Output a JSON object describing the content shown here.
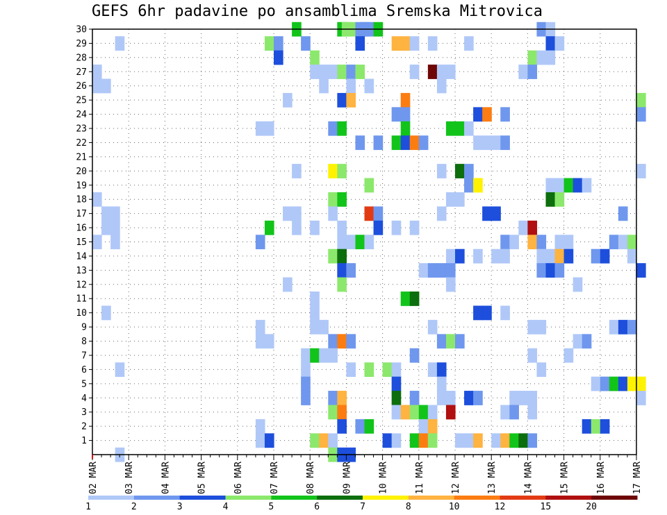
{
  "chart_data": {
    "type": "heatmap",
    "title": "GEFS 6hr padavine po ansamblima Sremska Mitrovica",
    "ylabel": "",
    "xlabel": "",
    "y_ticks": [
      "1",
      "2",
      "3",
      "4",
      "5",
      "6",
      "7",
      "8",
      "9",
      "10",
      "11",
      "12",
      "13",
      "14",
      "15",
      "16",
      "17",
      "18",
      "19",
      "20",
      "21",
      "22",
      "23",
      "24",
      "25",
      "26",
      "27",
      "28",
      "29",
      "30"
    ],
    "x_ticks": [
      "02 MAR",
      "03 MAR",
      "04 MAR",
      "05 MAR",
      "06 MAR",
      "07 MAR",
      "08 MAR",
      "09 MAR",
      "10 MAR",
      "11 MAR",
      "12 MAR",
      "13 MAR",
      "14 MAR",
      "15 MAR",
      "16 MAR",
      "17 MAR"
    ],
    "x_range": [
      "02 MAR 00Z",
      "17 MAR 00Z"
    ],
    "steps_per_day": 4,
    "y_range": [
      0,
      30
    ],
    "grid": true,
    "colorbar": {
      "labels": [
        "1",
        "2",
        "3",
        "4",
        "5",
        "6",
        "7",
        "8",
        "10",
        "12",
        "15",
        "20"
      ],
      "colors": [
        "#b0c8f8",
        "#6f97ee",
        "#1d4fdc",
        "#8ce86c",
        "#12c41a",
        "#0c6e0c",
        "#fff200",
        "#ffb340",
        "#fb7d12",
        "#e23b14",
        "#b01010",
        "#6e0606"
      ]
    },
    "cells": [
      [
        30,
        22.0,
        5
      ],
      [
        30,
        27.0,
        5
      ],
      [
        30,
        27.5,
        4
      ],
      [
        30,
        28.0,
        4
      ],
      [
        30,
        29.0,
        2
      ],
      [
        30,
        29.5,
        2
      ],
      [
        30,
        30.0,
        2
      ],
      [
        30,
        31.0,
        5
      ],
      [
        30,
        49.0,
        2
      ],
      [
        30,
        50.0,
        1
      ],
      [
        29,
        2.5,
        1
      ],
      [
        29,
        19.0,
        4
      ],
      [
        29,
        20.0,
        2
      ],
      [
        29,
        23.0,
        2
      ],
      [
        29,
        29.0,
        3
      ],
      [
        29,
        33.0,
        8
      ],
      [
        29,
        34.0,
        8
      ],
      [
        29,
        35.0,
        1
      ],
      [
        29,
        37.0,
        1
      ],
      [
        29,
        41.0,
        1
      ],
      [
        29,
        50.0,
        3
      ],
      [
        29,
        51.0,
        1
      ],
      [
        28,
        20.0,
        3
      ],
      [
        28,
        24.0,
        4
      ],
      [
        28,
        50.0,
        1
      ],
      [
        28,
        48.0,
        4
      ],
      [
        28,
        49.0,
        1
      ],
      [
        27,
        0.0,
        1
      ],
      [
        27,
        24.0,
        1
      ],
      [
        27,
        25.0,
        1
      ],
      [
        27,
        26.0,
        1
      ],
      [
        27,
        27.0,
        4
      ],
      [
        27,
        28.0,
        2
      ],
      [
        27,
        29.0,
        4
      ],
      [
        27,
        35.0,
        1
      ],
      [
        27,
        37.0,
        12
      ],
      [
        27,
        38.0,
        1
      ],
      [
        27,
        39.0,
        1
      ],
      [
        27,
        47.0,
        1
      ],
      [
        27,
        48.0,
        2
      ],
      [
        26,
        0.0,
        1
      ],
      [
        26,
        1.0,
        1
      ],
      [
        26,
        25.0,
        1
      ],
      [
        26,
        28.0,
        1
      ],
      [
        26,
        30.0,
        1
      ],
      [
        26,
        38.0,
        1
      ],
      [
        25,
        21.0,
        1
      ],
      [
        25,
        27.0,
        3
      ],
      [
        25,
        28.0,
        8
      ],
      [
        25,
        34.0,
        9
      ],
      [
        25,
        60.0,
        4
      ],
      [
        24,
        33.0,
        2
      ],
      [
        24,
        34.0,
        2
      ],
      [
        24,
        42.0,
        3
      ],
      [
        24,
        43.0,
        9
      ],
      [
        24,
        45.0,
        2
      ],
      [
        24,
        60.0,
        2
      ],
      [
        23,
        18.0,
        1
      ],
      [
        23,
        19.0,
        1
      ],
      [
        23,
        26.0,
        2
      ],
      [
        23,
        27.0,
        5
      ],
      [
        23,
        34.0,
        5
      ],
      [
        23,
        39.0,
        5
      ],
      [
        23,
        40.0,
        5
      ],
      [
        23,
        41.0,
        1
      ],
      [
        22,
        29.0,
        2
      ],
      [
        22,
        31.0,
        2
      ],
      [
        22,
        33.0,
        5
      ],
      [
        22,
        34.0,
        3
      ],
      [
        22,
        35.0,
        9
      ],
      [
        22,
        36.0,
        2
      ],
      [
        22,
        42.0,
        1
      ],
      [
        22,
        43.0,
        1
      ],
      [
        22,
        44.0,
        1
      ],
      [
        22,
        45.0,
        2
      ],
      [
        20,
        22.0,
        1
      ],
      [
        20,
        26.0,
        7
      ],
      [
        20,
        27.0,
        4
      ],
      [
        20,
        38.0,
        1
      ],
      [
        20,
        40.0,
        6
      ],
      [
        20,
        41.0,
        2
      ],
      [
        20,
        60.0,
        1
      ],
      [
        19,
        30.0,
        4
      ],
      [
        19,
        41.0,
        2
      ],
      [
        19,
        42.0,
        7
      ],
      [
        19,
        50.0,
        1
      ],
      [
        19,
        51.0,
        1
      ],
      [
        19,
        52.0,
        5
      ],
      [
        19,
        53.0,
        3
      ],
      [
        19,
        54.0,
        1
      ],
      [
        18,
        0.0,
        1
      ],
      [
        18,
        26.0,
        4
      ],
      [
        18,
        27.0,
        5
      ],
      [
        18,
        39.0,
        1
      ],
      [
        18,
        40.0,
        1
      ],
      [
        18,
        50.0,
        6
      ],
      [
        18,
        51.0,
        4
      ],
      [
        17,
        1.0,
        1
      ],
      [
        17,
        2.0,
        1
      ],
      [
        17,
        21.0,
        1
      ],
      [
        17,
        22.0,
        1
      ],
      [
        17,
        26.0,
        1
      ],
      [
        17,
        30.0,
        10
      ],
      [
        17,
        31.0,
        2
      ],
      [
        17,
        38.0,
        1
      ],
      [
        17,
        43.0,
        3
      ],
      [
        17,
        44.0,
        3
      ],
      [
        17,
        58.0,
        2
      ],
      [
        16,
        1.0,
        1
      ],
      [
        16,
        2.0,
        1
      ],
      [
        16,
        19.0,
        5
      ],
      [
        16,
        22.0,
        1
      ],
      [
        16,
        24.0,
        1
      ],
      [
        16,
        27.0,
        1
      ],
      [
        16,
        31.0,
        3
      ],
      [
        16,
        33.0,
        1
      ],
      [
        16,
        35.0,
        1
      ],
      [
        16,
        47.0,
        1
      ],
      [
        16,
        48.0,
        11
      ],
      [
        15,
        0.0,
        1
      ],
      [
        15,
        2.0,
        1
      ],
      [
        15,
        18.0,
        2
      ],
      [
        15,
        27.0,
        1
      ],
      [
        15,
        28.0,
        1
      ],
      [
        15,
        29.0,
        5
      ],
      [
        15,
        30.0,
        1
      ],
      [
        15,
        45.0,
        2
      ],
      [
        15,
        46.0,
        1
      ],
      [
        15,
        48.0,
        8
      ],
      [
        15,
        49.0,
        2
      ],
      [
        15,
        51.0,
        1
      ],
      [
        15,
        52.0,
        1
      ],
      [
        15,
        57.0,
        2
      ],
      [
        15,
        58.0,
        1
      ],
      [
        15,
        59.0,
        4
      ],
      [
        14,
        26.0,
        4
      ],
      [
        14,
        27.0,
        6
      ],
      [
        14,
        39.0,
        1
      ],
      [
        14,
        40.0,
        3
      ],
      [
        14,
        42.0,
        1
      ],
      [
        14,
        44.0,
        1
      ],
      [
        14,
        45.0,
        1
      ],
      [
        14,
        49.0,
        1
      ],
      [
        14,
        50.0,
        1
      ],
      [
        14,
        51.0,
        8
      ],
      [
        14,
        52.0,
        3
      ],
      [
        14,
        55.0,
        2
      ],
      [
        14,
        56.0,
        3
      ],
      [
        14,
        59.0,
        1
      ],
      [
        13,
        27.0,
        3
      ],
      [
        13,
        28.0,
        2
      ],
      [
        13,
        36.0,
        1
      ],
      [
        13,
        37.0,
        2
      ],
      [
        13,
        38.0,
        2
      ],
      [
        13,
        39.0,
        2
      ],
      [
        13,
        49.0,
        2
      ],
      [
        13,
        50.0,
        3
      ],
      [
        13,
        51.0,
        2
      ],
      [
        13,
        60.0,
        3
      ],
      [
        12,
        21.0,
        1
      ],
      [
        12,
        27.0,
        4
      ],
      [
        12,
        39.0,
        1
      ],
      [
        12,
        53.0,
        1
      ],
      [
        11,
        24.0,
        1
      ],
      [
        11,
        34.0,
        5
      ],
      [
        11,
        35.0,
        6
      ],
      [
        10,
        1.0,
        1
      ],
      [
        10,
        24.0,
        1
      ],
      [
        10,
        42.0,
        3
      ],
      [
        10,
        43.0,
        3
      ],
      [
        10,
        45.0,
        1
      ],
      [
        9,
        18.0,
        1
      ],
      [
        9,
        24.0,
        1
      ],
      [
        9,
        25.0,
        1
      ],
      [
        9,
        37.0,
        1
      ],
      [
        9,
        48.0,
        1
      ],
      [
        9,
        49.0,
        1
      ],
      [
        9,
        57.0,
        1
      ],
      [
        9,
        58.0,
        3
      ],
      [
        9,
        59.0,
        2
      ],
      [
        8,
        18.0,
        1
      ],
      [
        8,
        19.0,
        1
      ],
      [
        8,
        26.0,
        2
      ],
      [
        8,
        27.0,
        9
      ],
      [
        8,
        28.0,
        2
      ],
      [
        8,
        38.0,
        2
      ],
      [
        8,
        39.0,
        4
      ],
      [
        8,
        40.0,
        2
      ],
      [
        8,
        53.0,
        1
      ],
      [
        8,
        54.0,
        2
      ],
      [
        7,
        23.0,
        1
      ],
      [
        7,
        24.0,
        5
      ],
      [
        7,
        25.0,
        1
      ],
      [
        7,
        26.0,
        1
      ],
      [
        7,
        35.0,
        2
      ],
      [
        7,
        48.0,
        1
      ],
      [
        7,
        52.0,
        1
      ],
      [
        6,
        2.5,
        1
      ],
      [
        6,
        23.0,
        1
      ],
      [
        6,
        28.0,
        1
      ],
      [
        6,
        30.0,
        4
      ],
      [
        6,
        32.0,
        4
      ],
      [
        6,
        33.0,
        1
      ],
      [
        6,
        37.0,
        1
      ],
      [
        6,
        38.0,
        3
      ],
      [
        6,
        49.0,
        1
      ],
      [
        5,
        23.0,
        2
      ],
      [
        5,
        33.0,
        3
      ],
      [
        5,
        38.0,
        1
      ],
      [
        5,
        55.0,
        1
      ],
      [
        5,
        56.0,
        2
      ],
      [
        5,
        57.0,
        5
      ],
      [
        5,
        58.0,
        3
      ],
      [
        5,
        59.0,
        7
      ],
      [
        5,
        60.0,
        7
      ],
      [
        4,
        23.0,
        2
      ],
      [
        4,
        26.0,
        2
      ],
      [
        4,
        27.0,
        8
      ],
      [
        4,
        33.0,
        6
      ],
      [
        4,
        35.0,
        2
      ],
      [
        4,
        38.0,
        1
      ],
      [
        4,
        39.0,
        1
      ],
      [
        4,
        41.0,
        3
      ],
      [
        4,
        42.0,
        2
      ],
      [
        4,
        46.0,
        1
      ],
      [
        4,
        47.0,
        1
      ],
      [
        4,
        48.0,
        1
      ],
      [
        4,
        60.0,
        1
      ],
      [
        3,
        26.0,
        4
      ],
      [
        3,
        27.0,
        9
      ],
      [
        3,
        33.0,
        1
      ],
      [
        3,
        34.0,
        8
      ],
      [
        3,
        35.0,
        4
      ],
      [
        3,
        36.0,
        5
      ],
      [
        3,
        37.0,
        1
      ],
      [
        3,
        39.0,
        11
      ],
      [
        3,
        45.0,
        1
      ],
      [
        3,
        46.0,
        2
      ],
      [
        3,
        48.0,
        1
      ],
      [
        2,
        18.0,
        1
      ],
      [
        2,
        27.0,
        3
      ],
      [
        2,
        29.0,
        2
      ],
      [
        2,
        30.0,
        5
      ],
      [
        2,
        36.0,
        1
      ],
      [
        2,
        37.0,
        8
      ],
      [
        2,
        54.0,
        3
      ],
      [
        2,
        55.0,
        4
      ],
      [
        2,
        56.0,
        3
      ],
      [
        1,
        18.0,
        1
      ],
      [
        1,
        19.0,
        3
      ],
      [
        1,
        24.0,
        4
      ],
      [
        1,
        25.0,
        8
      ],
      [
        1,
        26.0,
        1
      ],
      [
        1,
        32.0,
        3
      ],
      [
        1,
        33.0,
        1
      ],
      [
        1,
        35.0,
        5
      ],
      [
        1,
        36.0,
        9
      ],
      [
        1,
        37.0,
        4
      ],
      [
        1,
        40.0,
        1
      ],
      [
        1,
        41.0,
        1
      ],
      [
        1,
        42.0,
        8
      ],
      [
        1,
        44.0,
        1
      ],
      [
        1,
        45.0,
        8
      ],
      [
        1,
        46.0,
        5
      ],
      [
        1,
        47.0,
        6
      ],
      [
        1,
        48.0,
        2
      ],
      [
        0,
        2.5,
        1
      ],
      [
        0,
        26.0,
        4
      ],
      [
        0,
        27.0,
        3
      ],
      [
        0,
        28.0,
        3
      ]
    ]
  }
}
